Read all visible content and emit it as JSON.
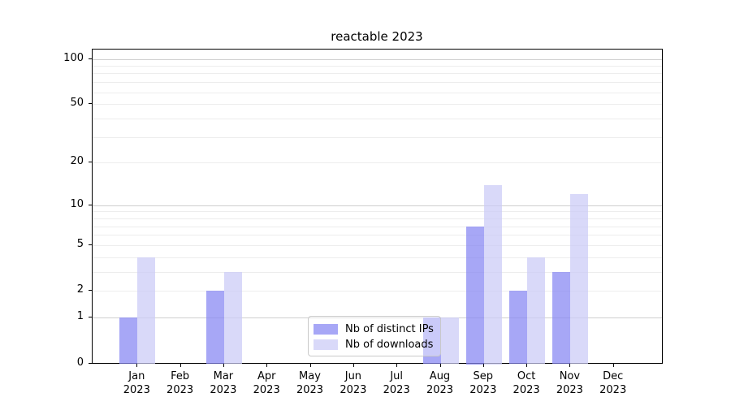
{
  "title": "reactable 2023",
  "chart_data": {
    "type": "bar",
    "title": "reactable 2023",
    "xlabel": "",
    "ylabel": "",
    "year_label": "2023",
    "categories": [
      "Jan",
      "Feb",
      "Mar",
      "Apr",
      "May",
      "Jun",
      "Jul",
      "Aug",
      "Sep",
      "Oct",
      "Nov",
      "Dec"
    ],
    "series": [
      {
        "name": "Nb of distinct IPs",
        "color": "rgba(133,133,242,0.72)",
        "values": [
          1,
          0,
          2,
          0,
          0,
          0,
          0,
          1,
          7,
          2,
          3,
          0
        ]
      },
      {
        "name": "Nb of downloads",
        "color": "rgba(203,203,246,0.72)",
        "values": [
          4,
          0,
          3,
          0,
          0,
          0,
          0,
          1,
          14,
          4,
          12,
          0
        ]
      }
    ],
    "y_scale": "log1p",
    "y_ticks": [
      0,
      1,
      2,
      5,
      10,
      20,
      50,
      100
    ],
    "ylim": [
      0,
      112
    ],
    "grid": {
      "major_lines": [
        1,
        10,
        100
      ],
      "minor_lines": [
        2,
        3,
        4,
        5,
        6,
        7,
        8,
        9,
        20,
        30,
        40,
        50,
        60,
        70,
        80,
        90
      ],
      "major_color": "#cfcfcf",
      "minor_color": "#ededed"
    },
    "legend_position": "lower center",
    "axis_color": "#000000",
    "background_color": "#ffffff"
  }
}
